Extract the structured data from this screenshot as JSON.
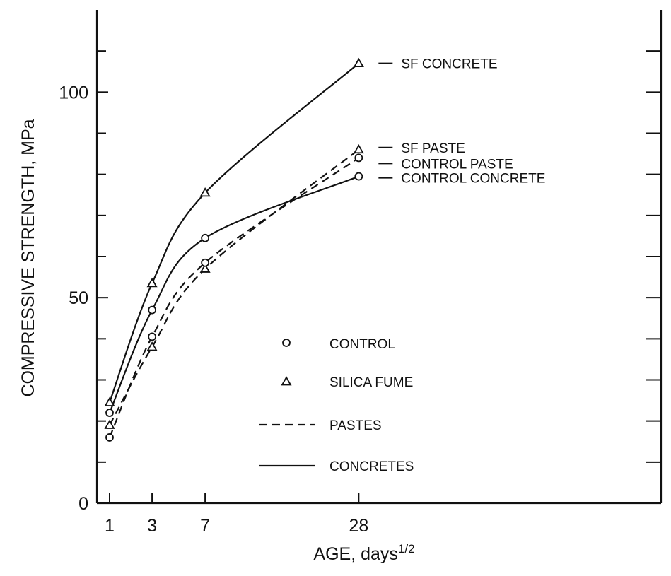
{
  "chart_data": {
    "type": "line",
    "title": "",
    "xlabel": "AGE, days",
    "xlabel_superscript": "1/2",
    "ylabel": "COMPRESSIVE STRENGTH, MPa",
    "x_scale": "sqrt",
    "x_ticks": [
      1,
      3,
      7,
      28
    ],
    "y_ticks": [
      0,
      50,
      100
    ],
    "ylim": [
      0,
      120
    ],
    "series": [
      {
        "name": "SF CONCRETE",
        "marker": "triangle",
        "line_style": "solid",
        "x": [
          1,
          3,
          7,
          28
        ],
        "y": [
          24.5,
          53.5,
          75.5,
          107
        ]
      },
      {
        "name": "SF PASTE",
        "marker": "triangle",
        "line_style": "dashed",
        "x": [
          1,
          3,
          7,
          28
        ],
        "y": [
          19,
          38,
          57,
          86
        ]
      },
      {
        "name": "CONTROL PASTE",
        "marker": "circle",
        "line_style": "dashed",
        "x": [
          1,
          3,
          7,
          28
        ],
        "y": [
          16,
          40.5,
          58.5,
          84
        ]
      },
      {
        "name": "CONTROL CONCRETE",
        "marker": "circle",
        "line_style": "solid",
        "x": [
          1,
          3,
          7,
          28
        ],
        "y": [
          22,
          47,
          64.5,
          79.5
        ]
      }
    ],
    "legend": {
      "placement": "center",
      "items": [
        {
          "label": "CONTROL",
          "symbol": "circle"
        },
        {
          "label": "SILICA FUME",
          "symbol": "triangle"
        },
        {
          "label": "PASTES",
          "symbol": "dashed-line"
        },
        {
          "label": "CONCRETES",
          "symbol": "solid-line"
        }
      ]
    },
    "grid": false,
    "line_color": "#111111"
  }
}
